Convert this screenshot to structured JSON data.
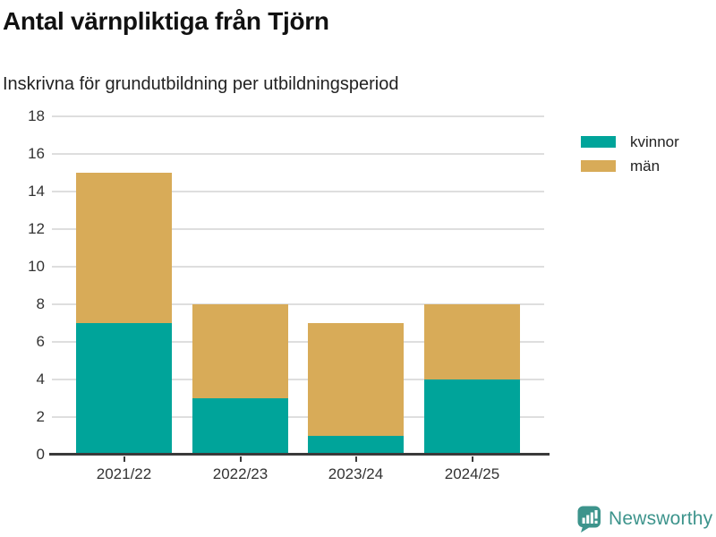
{
  "header": {
    "title": "Antal värnpliktiga från Tjörn",
    "subtitle": "Inskrivna för grundutbildning per utbildningsperiod"
  },
  "chart_data": {
    "type": "bar",
    "stacked": true,
    "title": "Antal värnpliktiga från Tjörn",
    "subtitle": "Inskrivna för grundutbildning per utbildningsperiod",
    "categories": [
      "2021/22",
      "2022/23",
      "2023/24",
      "2024/25"
    ],
    "series": [
      {
        "name": "kvinnor",
        "color": "#00a49a",
        "values": [
          7,
          3,
          1,
          4
        ]
      },
      {
        "name": "män",
        "color": "#d8ab58",
        "values": [
          8,
          5,
          6,
          4
        ]
      }
    ],
    "totals": [
      15,
      8,
      7,
      8
    ],
    "xlabel": "",
    "ylabel": "",
    "ylim": [
      0,
      18
    ],
    "ytick_step": 2,
    "yticks": [
      0,
      2,
      4,
      6,
      8,
      10,
      12,
      14,
      16,
      18
    ],
    "grid": "horizontal",
    "legend_position": "top-right"
  },
  "footer": {
    "brand": "Newsworthy",
    "brand_color": "#3d948c",
    "logo_icon": "speech-bubble-bar-chart"
  }
}
